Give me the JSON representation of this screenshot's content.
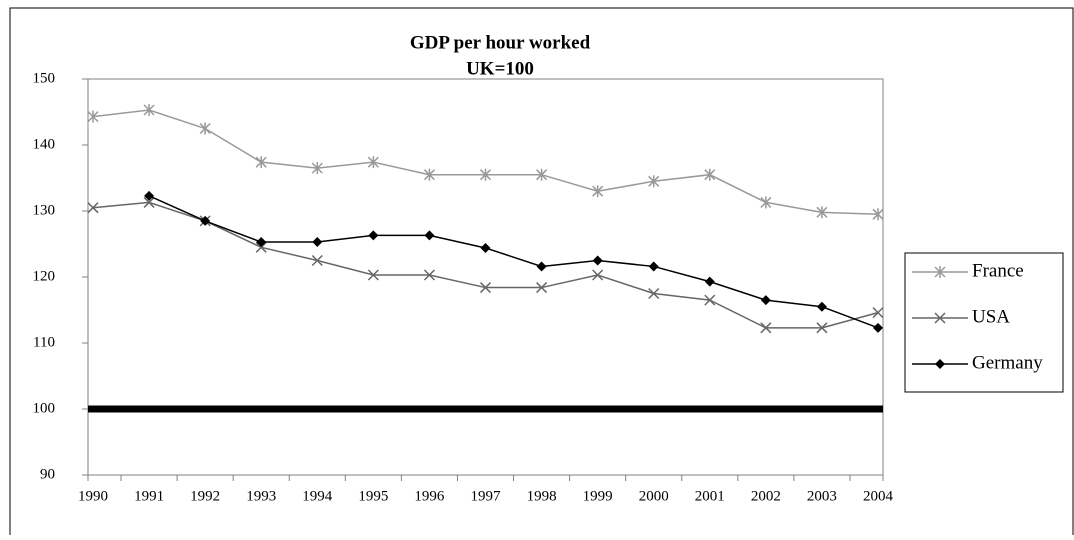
{
  "chart_data": {
    "type": "line",
    "title": "GDP per hour worked",
    "subtitle": "UK=100",
    "categories": [
      "1990",
      "1991",
      "1992",
      "1993",
      "1994",
      "1995",
      "1996",
      "1997",
      "1998",
      "1999",
      "2000",
      "2001",
      "2002",
      "2003",
      "2004"
    ],
    "series": [
      {
        "name": "France",
        "color": "#999999",
        "marker": "asterisk",
        "values": [
          144.3,
          145.3,
          142.5,
          137.4,
          136.5,
          137.4,
          135.5,
          135.5,
          135.5,
          133.0,
          134.5,
          135.5,
          131.3,
          129.8,
          129.5
        ]
      },
      {
        "name": "USA",
        "color": "#666666",
        "marker": "x",
        "values": [
          130.5,
          131.3,
          128.5,
          124.5,
          122.5,
          120.3,
          120.3,
          118.4,
          118.4,
          120.3,
          117.5,
          116.5,
          112.3,
          112.3,
          114.6
        ]
      },
      {
        "name": "Germany",
        "color": "#000000",
        "marker": "diamond",
        "values": [
          null,
          132.3,
          128.5,
          125.3,
          125.3,
          126.3,
          126.3,
          124.4,
          121.6,
          122.5,
          121.6,
          119.3,
          116.5,
          115.5,
          112.3
        ]
      }
    ],
    "reference_line": {
      "value": 100,
      "color": "#000000"
    },
    "ylim": [
      90,
      150
    ],
    "yticks": [
      90,
      100,
      110,
      120,
      130,
      140,
      150
    ],
    "legend": "right"
  }
}
